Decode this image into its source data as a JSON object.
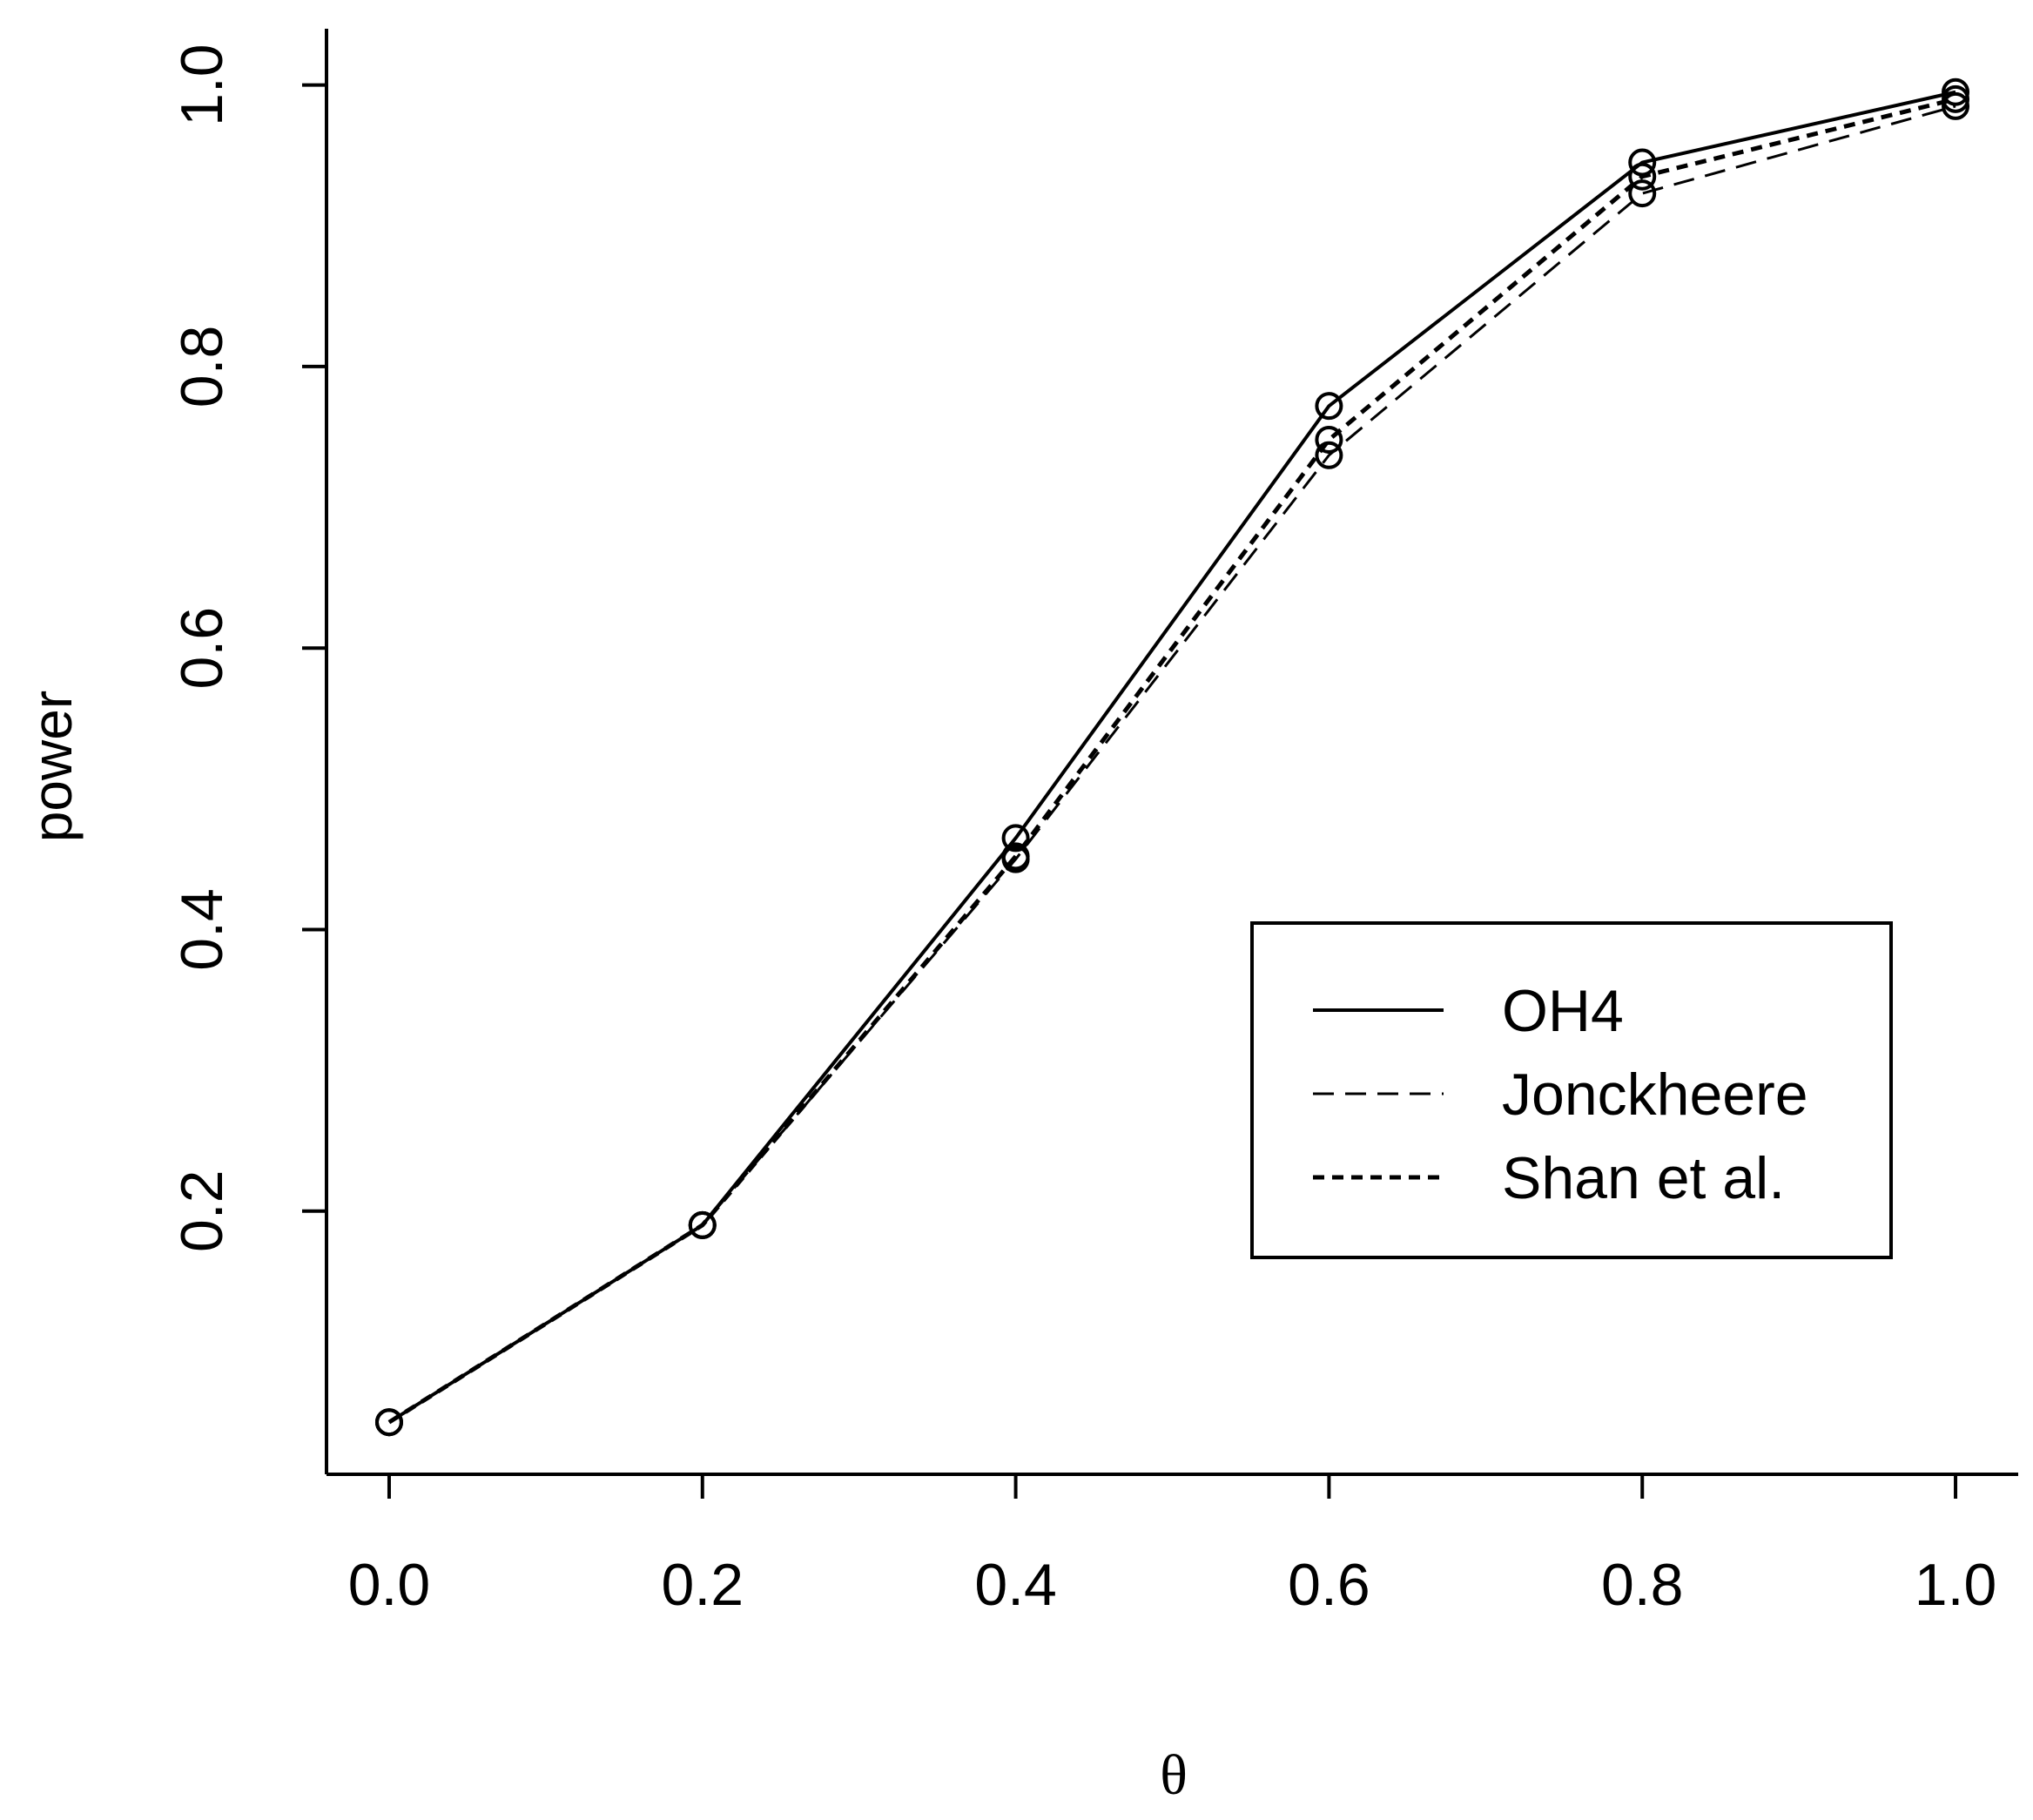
{
  "chart_data": {
    "type": "line",
    "title": "",
    "xlabel": "θ",
    "ylabel": "power",
    "x": [
      0.0,
      0.2,
      0.4,
      0.6,
      0.8,
      1.0
    ],
    "x_tick_labels": [
      "0.0",
      "0.2",
      "0.4",
      "0.6",
      "0.8",
      "1.0"
    ],
    "y_ticks": [
      0.2,
      0.4,
      0.6,
      0.8,
      1.0
    ],
    "y_tick_labels": [
      "0.2",
      "0.4",
      "0.6",
      "0.8",
      "1.0"
    ],
    "xlim": [
      -0.04,
      1.04
    ],
    "ylim": [
      0.013,
      1.04
    ],
    "grid": false,
    "markers": "open-circle",
    "legend_position": "bottom-right",
    "series": [
      {
        "name": "OH4",
        "linestyle": "solid",
        "values": [
          0.05,
          0.19,
          0.465,
          0.772,
          0.945,
          0.995
        ]
      },
      {
        "name": "Jonckheere",
        "linestyle": "dashed",
        "values": [
          0.05,
          0.19,
          0.45,
          0.737,
          0.923,
          0.985
        ]
      },
      {
        "name": "Shan et al.",
        "linestyle": "dotted",
        "values": [
          0.05,
          0.19,
          0.452,
          0.748,
          0.935,
          0.99
        ]
      }
    ]
  }
}
